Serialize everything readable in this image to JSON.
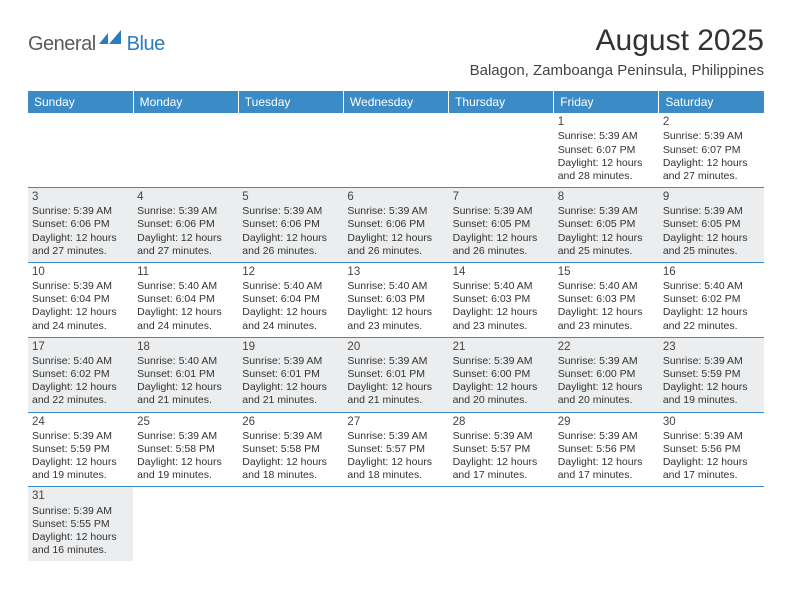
{
  "logo": {
    "part1": "General",
    "part2": "Blue"
  },
  "title": "August 2025",
  "location": "Balagon, Zamboanga Peninsula, Philippines",
  "colors": {
    "header_bg": "#3b8bc7",
    "header_text": "#ffffff",
    "row_alt_bg": "#ecedee",
    "row_bg": "#ffffff",
    "border": "#3b8bc7",
    "logo_gray": "#5b5b5b",
    "logo_blue": "#2b7bbf"
  },
  "days_of_week": [
    "Sunday",
    "Monday",
    "Tuesday",
    "Wednesday",
    "Thursday",
    "Friday",
    "Saturday"
  ],
  "weeks": [
    {
      "shade": "a",
      "cells": [
        null,
        null,
        null,
        null,
        null,
        {
          "n": "1",
          "sr": "Sunrise: 5:39 AM",
          "ss": "Sunset: 6:07 PM",
          "d1": "Daylight: 12 hours",
          "d2": "and 28 minutes."
        },
        {
          "n": "2",
          "sr": "Sunrise: 5:39 AM",
          "ss": "Sunset: 6:07 PM",
          "d1": "Daylight: 12 hours",
          "d2": "and 27 minutes."
        }
      ]
    },
    {
      "shade": "b",
      "cells": [
        {
          "n": "3",
          "sr": "Sunrise: 5:39 AM",
          "ss": "Sunset: 6:06 PM",
          "d1": "Daylight: 12 hours",
          "d2": "and 27 minutes."
        },
        {
          "n": "4",
          "sr": "Sunrise: 5:39 AM",
          "ss": "Sunset: 6:06 PM",
          "d1": "Daylight: 12 hours",
          "d2": "and 27 minutes."
        },
        {
          "n": "5",
          "sr": "Sunrise: 5:39 AM",
          "ss": "Sunset: 6:06 PM",
          "d1": "Daylight: 12 hours",
          "d2": "and 26 minutes."
        },
        {
          "n": "6",
          "sr": "Sunrise: 5:39 AM",
          "ss": "Sunset: 6:06 PM",
          "d1": "Daylight: 12 hours",
          "d2": "and 26 minutes."
        },
        {
          "n": "7",
          "sr": "Sunrise: 5:39 AM",
          "ss": "Sunset: 6:05 PM",
          "d1": "Daylight: 12 hours",
          "d2": "and 26 minutes."
        },
        {
          "n": "8",
          "sr": "Sunrise: 5:39 AM",
          "ss": "Sunset: 6:05 PM",
          "d1": "Daylight: 12 hours",
          "d2": "and 25 minutes."
        },
        {
          "n": "9",
          "sr": "Sunrise: 5:39 AM",
          "ss": "Sunset: 6:05 PM",
          "d1": "Daylight: 12 hours",
          "d2": "and 25 minutes."
        }
      ]
    },
    {
      "shade": "a",
      "cells": [
        {
          "n": "10",
          "sr": "Sunrise: 5:39 AM",
          "ss": "Sunset: 6:04 PM",
          "d1": "Daylight: 12 hours",
          "d2": "and 24 minutes."
        },
        {
          "n": "11",
          "sr": "Sunrise: 5:40 AM",
          "ss": "Sunset: 6:04 PM",
          "d1": "Daylight: 12 hours",
          "d2": "and 24 minutes."
        },
        {
          "n": "12",
          "sr": "Sunrise: 5:40 AM",
          "ss": "Sunset: 6:04 PM",
          "d1": "Daylight: 12 hours",
          "d2": "and 24 minutes."
        },
        {
          "n": "13",
          "sr": "Sunrise: 5:40 AM",
          "ss": "Sunset: 6:03 PM",
          "d1": "Daylight: 12 hours",
          "d2": "and 23 minutes."
        },
        {
          "n": "14",
          "sr": "Sunrise: 5:40 AM",
          "ss": "Sunset: 6:03 PM",
          "d1": "Daylight: 12 hours",
          "d2": "and 23 minutes."
        },
        {
          "n": "15",
          "sr": "Sunrise: 5:40 AM",
          "ss": "Sunset: 6:03 PM",
          "d1": "Daylight: 12 hours",
          "d2": "and 23 minutes."
        },
        {
          "n": "16",
          "sr": "Sunrise: 5:40 AM",
          "ss": "Sunset: 6:02 PM",
          "d1": "Daylight: 12 hours",
          "d2": "and 22 minutes."
        }
      ]
    },
    {
      "shade": "b",
      "cells": [
        {
          "n": "17",
          "sr": "Sunrise: 5:40 AM",
          "ss": "Sunset: 6:02 PM",
          "d1": "Daylight: 12 hours",
          "d2": "and 22 minutes."
        },
        {
          "n": "18",
          "sr": "Sunrise: 5:40 AM",
          "ss": "Sunset: 6:01 PM",
          "d1": "Daylight: 12 hours",
          "d2": "and 21 minutes."
        },
        {
          "n": "19",
          "sr": "Sunrise: 5:39 AM",
          "ss": "Sunset: 6:01 PM",
          "d1": "Daylight: 12 hours",
          "d2": "and 21 minutes."
        },
        {
          "n": "20",
          "sr": "Sunrise: 5:39 AM",
          "ss": "Sunset: 6:01 PM",
          "d1": "Daylight: 12 hours",
          "d2": "and 21 minutes."
        },
        {
          "n": "21",
          "sr": "Sunrise: 5:39 AM",
          "ss": "Sunset: 6:00 PM",
          "d1": "Daylight: 12 hours",
          "d2": "and 20 minutes."
        },
        {
          "n": "22",
          "sr": "Sunrise: 5:39 AM",
          "ss": "Sunset: 6:00 PM",
          "d1": "Daylight: 12 hours",
          "d2": "and 20 minutes."
        },
        {
          "n": "23",
          "sr": "Sunrise: 5:39 AM",
          "ss": "Sunset: 5:59 PM",
          "d1": "Daylight: 12 hours",
          "d2": "and 19 minutes."
        }
      ]
    },
    {
      "shade": "a",
      "cells": [
        {
          "n": "24",
          "sr": "Sunrise: 5:39 AM",
          "ss": "Sunset: 5:59 PM",
          "d1": "Daylight: 12 hours",
          "d2": "and 19 minutes."
        },
        {
          "n": "25",
          "sr": "Sunrise: 5:39 AM",
          "ss": "Sunset: 5:58 PM",
          "d1": "Daylight: 12 hours",
          "d2": "and 19 minutes."
        },
        {
          "n": "26",
          "sr": "Sunrise: 5:39 AM",
          "ss": "Sunset: 5:58 PM",
          "d1": "Daylight: 12 hours",
          "d2": "and 18 minutes."
        },
        {
          "n": "27",
          "sr": "Sunrise: 5:39 AM",
          "ss": "Sunset: 5:57 PM",
          "d1": "Daylight: 12 hours",
          "d2": "and 18 minutes."
        },
        {
          "n": "28",
          "sr": "Sunrise: 5:39 AM",
          "ss": "Sunset: 5:57 PM",
          "d1": "Daylight: 12 hours",
          "d2": "and 17 minutes."
        },
        {
          "n": "29",
          "sr": "Sunrise: 5:39 AM",
          "ss": "Sunset: 5:56 PM",
          "d1": "Daylight: 12 hours",
          "d2": "and 17 minutes."
        },
        {
          "n": "30",
          "sr": "Sunrise: 5:39 AM",
          "ss": "Sunset: 5:56 PM",
          "d1": "Daylight: 12 hours",
          "d2": "and 17 minutes."
        }
      ]
    },
    {
      "shade": "b",
      "cells": [
        {
          "n": "31",
          "sr": "Sunrise: 5:39 AM",
          "ss": "Sunset: 5:55 PM",
          "d1": "Daylight: 12 hours",
          "d2": "and 16 minutes."
        },
        null,
        null,
        null,
        null,
        null,
        null
      ]
    }
  ]
}
